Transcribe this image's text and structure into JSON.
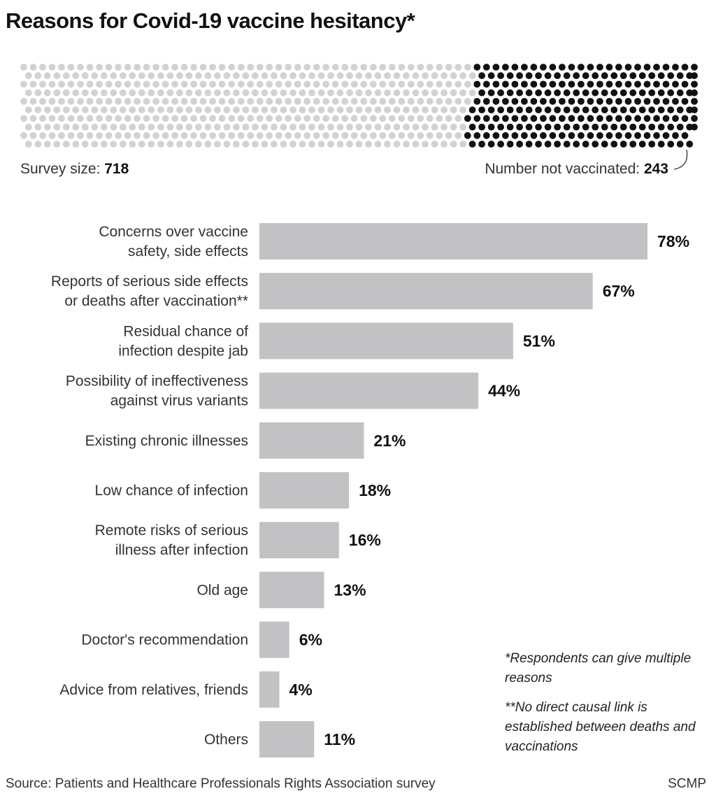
{
  "title": "Reasons for Covid-19 vaccine hesitancy*",
  "survey": {
    "size_label": "Survey size:",
    "size_value": "718",
    "not_vaccinated_label": "Number not vaccinated:",
    "not_vaccinated_value": "243",
    "total": 718,
    "not_vaccinated": 243
  },
  "footnotes": {
    "note1": "*Respondents can give multiple reasons",
    "note2": "**No direct causal link is established between deaths and vaccinations"
  },
  "source": "Source: Patients and Healthcare Professionals Rights Association survey",
  "credit": "SCMP",
  "colors": {
    "bar": "#c2c2c4",
    "dot_light": "#d2d2d4",
    "dot_dark": "#111111"
  },
  "chart_data": {
    "type": "bar",
    "orientation": "horizontal",
    "title": "Reasons for Covid-19 vaccine hesitancy*",
    "categories": [
      [
        "Concerns over vaccine",
        "safety, side effects"
      ],
      [
        "Reports of serious side effects",
        "or deaths after vaccination**"
      ],
      [
        "Residual chance of",
        "infection despite jab"
      ],
      [
        "Possibility of ineffectiveness",
        "against virus variants"
      ],
      [
        "Existing chronic illnesses"
      ],
      [
        "Low chance of infection"
      ],
      [
        "Remote risks of serious",
        "illness after infection"
      ],
      [
        "Old age"
      ],
      [
        "Doctor's recommendation"
      ],
      [
        "Advice from relatives, friends"
      ],
      [
        "Others"
      ]
    ],
    "values": [
      78,
      67,
      51,
      44,
      21,
      18,
      16,
      13,
      6,
      4,
      11
    ],
    "value_labels": [
      "78%",
      "67%",
      "51%",
      "44%",
      "21%",
      "18%",
      "16%",
      "13%",
      "6%",
      "4%",
      "11%"
    ],
    "unit": "%",
    "xlim": [
      0,
      78
    ]
  }
}
